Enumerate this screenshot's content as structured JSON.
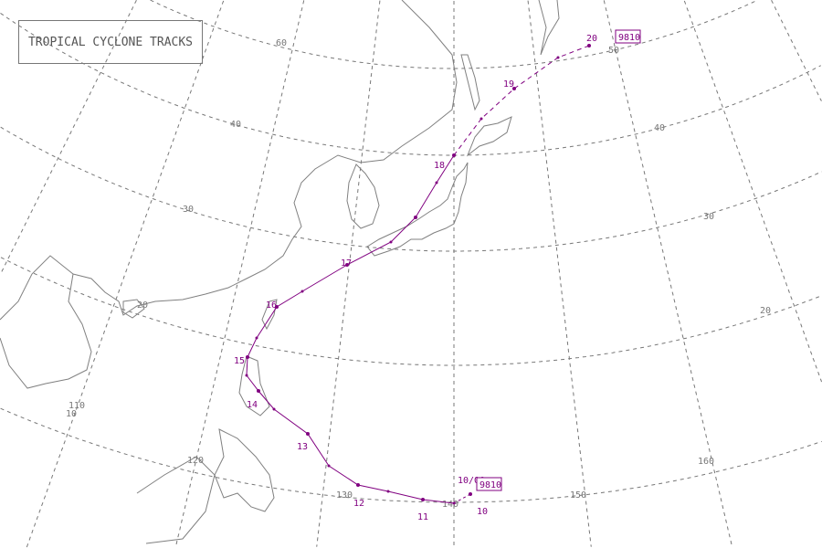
{
  "title": "TROPICAL CYCLONE TRACKS",
  "colors": {
    "track": "#800080",
    "graticule": "#777777",
    "coast": "#808080"
  },
  "cyclone": {
    "id": "9810",
    "start_label": "10/00",
    "day_labels": [
      "10",
      "11",
      "12",
      "13",
      "14",
      "15",
      "16",
      "17",
      "18",
      "19",
      "20"
    ]
  },
  "graticule": {
    "latitude_labels": [
      "10",
      "20",
      "30",
      "40",
      "50",
      "20",
      "30",
      "40",
      "60"
    ],
    "longitude_labels": [
      "110",
      "120",
      "130",
      "140",
      "150",
      "160"
    ]
  }
}
